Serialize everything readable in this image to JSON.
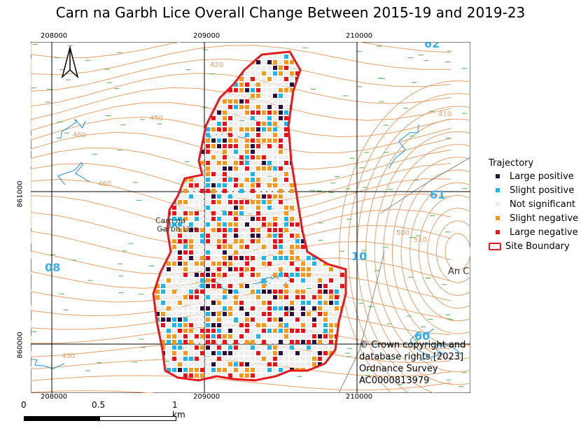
{
  "title": "Carn na Garbh Lice Overall Change Between 2015-19 and 2019-23",
  "grid": {
    "easting_labels_top": [
      "208000",
      "209000",
      "210000"
    ],
    "easting_labels_bottom": [
      "208000",
      "209000",
      "210000"
    ],
    "northing_labels": [
      "861000",
      "860000"
    ]
  },
  "map_text": {
    "contours": [
      "420",
      "410",
      "460",
      "450",
      "460",
      "500",
      "510",
      "430"
    ],
    "grid_numbers": [
      "62",
      "61",
      "10",
      "08",
      "60"
    ],
    "place_name_1": "Carn na",
    "place_name_2": "Garbh Lice",
    "place_right": "An C"
  },
  "legend": {
    "title": "Trajectory",
    "items": [
      {
        "label": "Large positive",
        "color": "#2b0f3f"
      },
      {
        "label": "Slight positive",
        "color": "#1fb5e8"
      },
      {
        "label": "Not significant",
        "color": "#eeeeee"
      },
      {
        "label": "Slight negative",
        "color": "#f39a1d"
      },
      {
        "label": "Large negative",
        "color": "#e8141c"
      }
    ],
    "boundary_label": "Site Boundary",
    "boundary_color": "#e41a1c"
  },
  "scale": {
    "labels": [
      "0",
      "0.5",
      "1 km"
    ]
  },
  "copyright": [
    "© Crown copyright and",
    "database rights [2023]",
    "Ordnance Survey",
    "AC0000813979"
  ]
}
